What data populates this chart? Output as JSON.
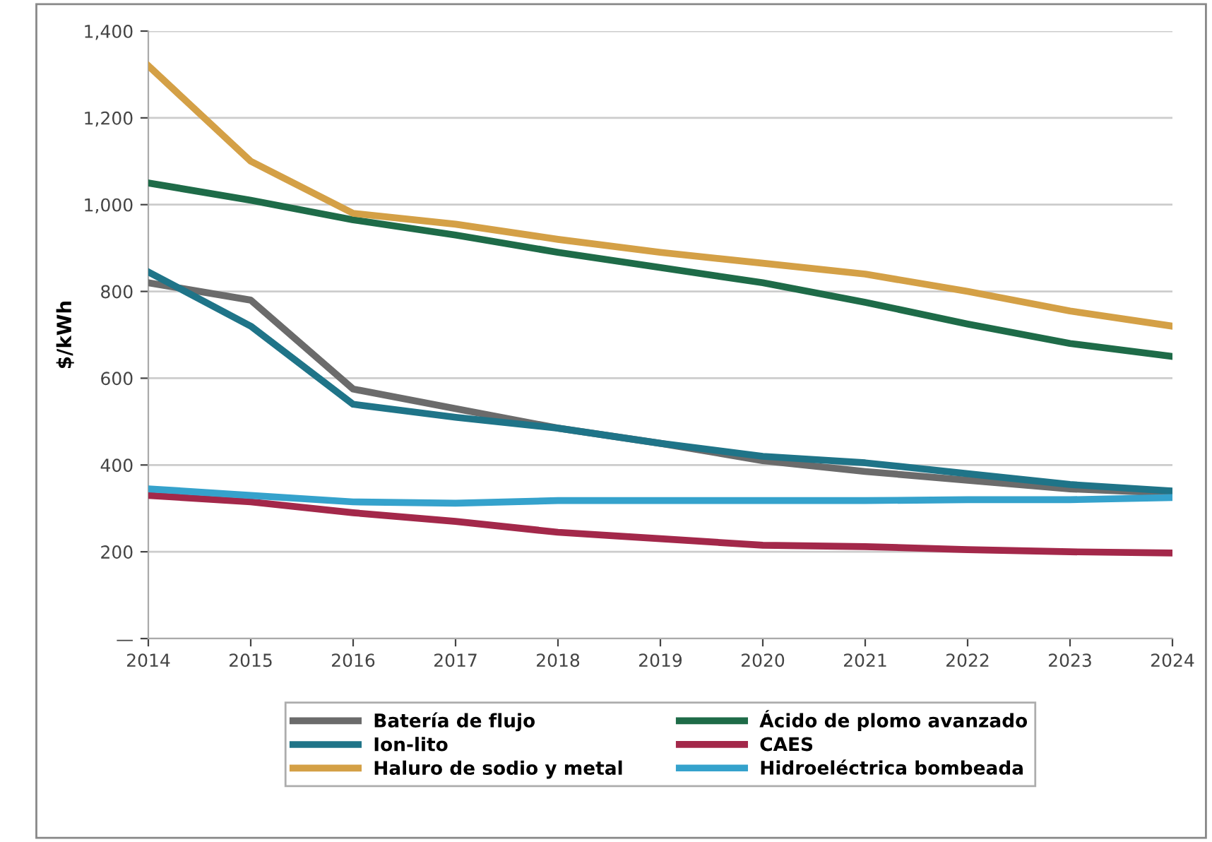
{
  "chart_data": {
    "type": "line",
    "ylabel": "$/kWh",
    "x": [
      2014,
      2015,
      2016,
      2017,
      2018,
      2019,
      2020,
      2021,
      2022,
      2023,
      2024
    ],
    "xlim": [
      2014,
      2024
    ],
    "xticks": [
      2014,
      2015,
      2016,
      2017,
      2018,
      2019,
      2020,
      2021,
      2022,
      2023,
      2024
    ],
    "ylim": [
      0,
      1400
    ],
    "yticks": [
      {
        "value": 0,
        "label": "—"
      },
      {
        "value": 200,
        "label": "200"
      },
      {
        "value": 400,
        "label": "400"
      },
      {
        "value": 600,
        "label": "600"
      },
      {
        "value": 800,
        "label": "800"
      },
      {
        "value": 1000,
        "label": "1,000"
      },
      {
        "value": 1200,
        "label": "1,200"
      },
      {
        "value": 1400,
        "label": "1,400"
      }
    ],
    "grid": "y",
    "legend": "bottom",
    "marker": "none",
    "line_style": "solid",
    "series": [
      {
        "name": "Batería de flujo",
        "color": "#6b6b6b",
        "values": [
          820,
          780,
          575,
          530,
          485,
          450,
          410,
          385,
          365,
          345,
          335
        ]
      },
      {
        "name": "Ácido de plomo avanzado",
        "color": "#1e6b48",
        "values": [
          1050,
          1010,
          965,
          930,
          890,
          855,
          820,
          775,
          725,
          680,
          650
        ]
      },
      {
        "name": "Ion-lito",
        "color": "#1f7488",
        "values": [
          845,
          720,
          540,
          510,
          485,
          450,
          420,
          405,
          380,
          355,
          340
        ]
      },
      {
        "name": "CAES",
        "color": "#a3284a",
        "values": [
          330,
          315,
          290,
          270,
          245,
          230,
          215,
          212,
          205,
          200,
          197
        ]
      },
      {
        "name": "Haluro de sodio y metal",
        "color": "#d4a046",
        "values": [
          1320,
          1100,
          980,
          955,
          920,
          890,
          865,
          840,
          800,
          755,
          720
        ]
      },
      {
        "name": "Hidroeléctrica bombeada",
        "color": "#35a2cc",
        "values": [
          345,
          330,
          315,
          312,
          318,
          318,
          318,
          318,
          320,
          320,
          325
        ]
      }
    ]
  }
}
